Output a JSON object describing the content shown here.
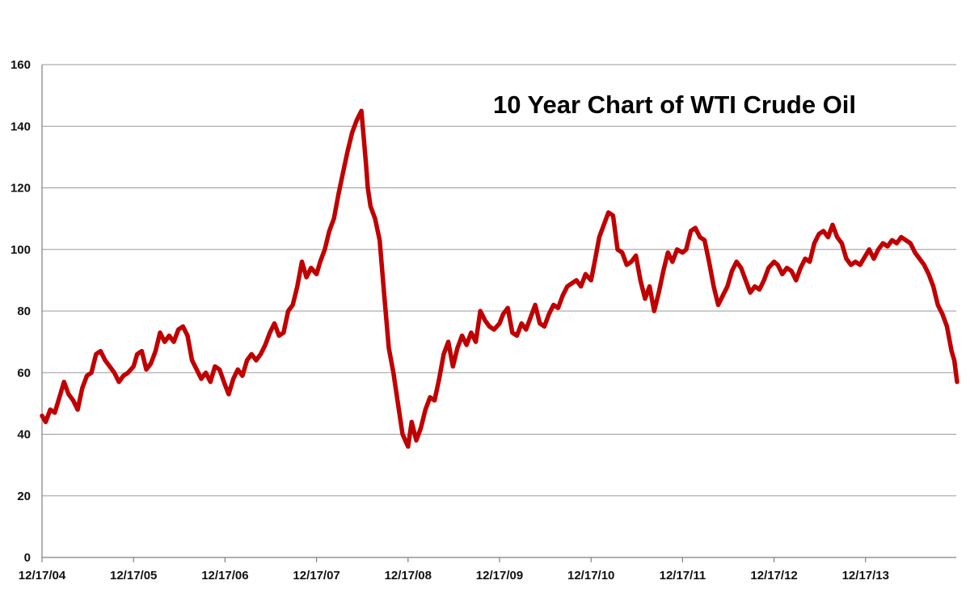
{
  "chart_data": {
    "type": "line",
    "title": "10 Year Chart of WTI Crude Oil",
    "xlabel": "",
    "ylabel": "",
    "ylim": [
      0,
      160
    ],
    "yticks": [
      0,
      20,
      40,
      60,
      80,
      100,
      120,
      140,
      160
    ],
    "xticks": [
      "12/17/04",
      "12/17/05",
      "12/17/06",
      "12/17/07",
      "12/17/08",
      "12/17/09",
      "12/17/10",
      "12/17/11",
      "12/17/12",
      "12/17/13"
    ],
    "grid": "horizontal",
    "legend": "none",
    "colors": {
      "line": "#c00000",
      "grid": "#9a9a9a",
      "axis": "#7f7f7f"
    },
    "series": [
      {
        "x": [
          2004.96,
          2005.0,
          2005.05,
          2005.1,
          2005.15,
          2005.2,
          2005.25,
          2005.3,
          2005.35,
          2005.4,
          2005.45,
          2005.5,
          2005.55,
          2005.6,
          2005.65,
          2005.7,
          2005.75,
          2005.8,
          2005.85,
          2005.9,
          2005.96,
          2006.0,
          2006.05,
          2006.1,
          2006.15,
          2006.2,
          2006.25,
          2006.3,
          2006.35,
          2006.4,
          2006.45,
          2006.5,
          2006.55,
          2006.6,
          2006.65,
          2006.7,
          2006.75,
          2006.8,
          2006.85,
          2006.9,
          2006.96,
          2007.0,
          2007.05,
          2007.1,
          2007.15,
          2007.2,
          2007.25,
          2007.3,
          2007.35,
          2007.4,
          2007.45,
          2007.5,
          2007.55,
          2007.6,
          2007.65,
          2007.7,
          2007.75,
          2007.8,
          2007.85,
          2007.9,
          2007.96,
          2008.0,
          2008.05,
          2008.1,
          2008.15,
          2008.2,
          2008.25,
          2008.3,
          2008.35,
          2008.4,
          2008.45,
          2008.5,
          2008.52,
          2008.55,
          2008.6,
          2008.65,
          2008.7,
          2008.75,
          2008.8,
          2008.85,
          2008.9,
          2008.96,
          2009.0,
          2009.05,
          2009.1,
          2009.15,
          2009.2,
          2009.25,
          2009.3,
          2009.35,
          2009.4,
          2009.45,
          2009.5,
          2009.55,
          2009.6,
          2009.65,
          2009.7,
          2009.75,
          2009.8,
          2009.85,
          2009.9,
          2009.96,
          2010.0,
          2010.05,
          2010.1,
          2010.15,
          2010.2,
          2010.25,
          2010.3,
          2010.35,
          2010.4,
          2010.45,
          2010.5,
          2010.55,
          2010.6,
          2010.65,
          2010.7,
          2010.75,
          2010.8,
          2010.85,
          2010.9,
          2010.96,
          2011.0,
          2011.05,
          2011.1,
          2011.15,
          2011.2,
          2011.25,
          2011.3,
          2011.35,
          2011.4,
          2011.45,
          2011.5,
          2011.55,
          2011.6,
          2011.65,
          2011.7,
          2011.75,
          2011.8,
          2011.85,
          2011.9,
          2011.96,
          2012.0,
          2012.05,
          2012.1,
          2012.15,
          2012.2,
          2012.25,
          2012.3,
          2012.35,
          2012.4,
          2012.45,
          2012.5,
          2012.55,
          2012.6,
          2012.65,
          2012.7,
          2012.75,
          2012.8,
          2012.85,
          2012.9,
          2012.96,
          2013.0,
          2013.05,
          2013.1,
          2013.15,
          2013.2,
          2013.25,
          2013.3,
          2013.35,
          2013.4,
          2013.45,
          2013.5,
          2013.55,
          2013.6,
          2013.65,
          2013.7,
          2013.75,
          2013.8,
          2013.85,
          2013.9,
          2013.96,
          2014.0,
          2014.05,
          2014.1,
          2014.15,
          2014.2,
          2014.25,
          2014.3,
          2014.35,
          2014.4,
          2014.45,
          2014.5,
          2014.55,
          2014.6,
          2014.65,
          2014.7,
          2014.75,
          2014.8,
          2014.85,
          2014.9,
          2014.93,
          2014.96
        ],
        "y": [
          46,
          44,
          48,
          47,
          52,
          57,
          53,
          51,
          48,
          55,
          59,
          60,
          66,
          67,
          64,
          62,
          60,
          57,
          59,
          60,
          62,
          66,
          67,
          61,
          63,
          67,
          73,
          70,
          72,
          70,
          74,
          75,
          72,
          64,
          61,
          58,
          60,
          57,
          62,
          61,
          56,
          53,
          58,
          61,
          59,
          64,
          66,
          64,
          66,
          69,
          73,
          76,
          72,
          73,
          80,
          82,
          88,
          96,
          91,
          94,
          92,
          96,
          100,
          106,
          110,
          118,
          125,
          132,
          138,
          142,
          145,
          128,
          120,
          114,
          110,
          103,
          85,
          68,
          60,
          50,
          40,
          36,
          44,
          38,
          42,
          48,
          52,
          51,
          58,
          66,
          70,
          62,
          68,
          72,
          69,
          73,
          70,
          80,
          77,
          75,
          74,
          76,
          79,
          81,
          73,
          72,
          76,
          74,
          78,
          82,
          76,
          75,
          79,
          82,
          81,
          85,
          88,
          89,
          90,
          88,
          92,
          90,
          96,
          104,
          108,
          112,
          111,
          100,
          99,
          95,
          96,
          98,
          90,
          84,
          88,
          80,
          86,
          93,
          99,
          96,
          100,
          99,
          100,
          106,
          107,
          104,
          103,
          96,
          88,
          82,
          85,
          88,
          93,
          96,
          94,
          90,
          86,
          88,
          87,
          90,
          94,
          96,
          95,
          92,
          94,
          93,
          90,
          94,
          97,
          96,
          102,
          105,
          106,
          104,
          108,
          104,
          102,
          97,
          95,
          96,
          95,
          98,
          100,
          97,
          100,
          102,
          101,
          103,
          102,
          104,
          103,
          102,
          99,
          97,
          95,
          92,
          88,
          82,
          79,
          75,
          67,
          64,
          57
        ]
      }
    ]
  }
}
